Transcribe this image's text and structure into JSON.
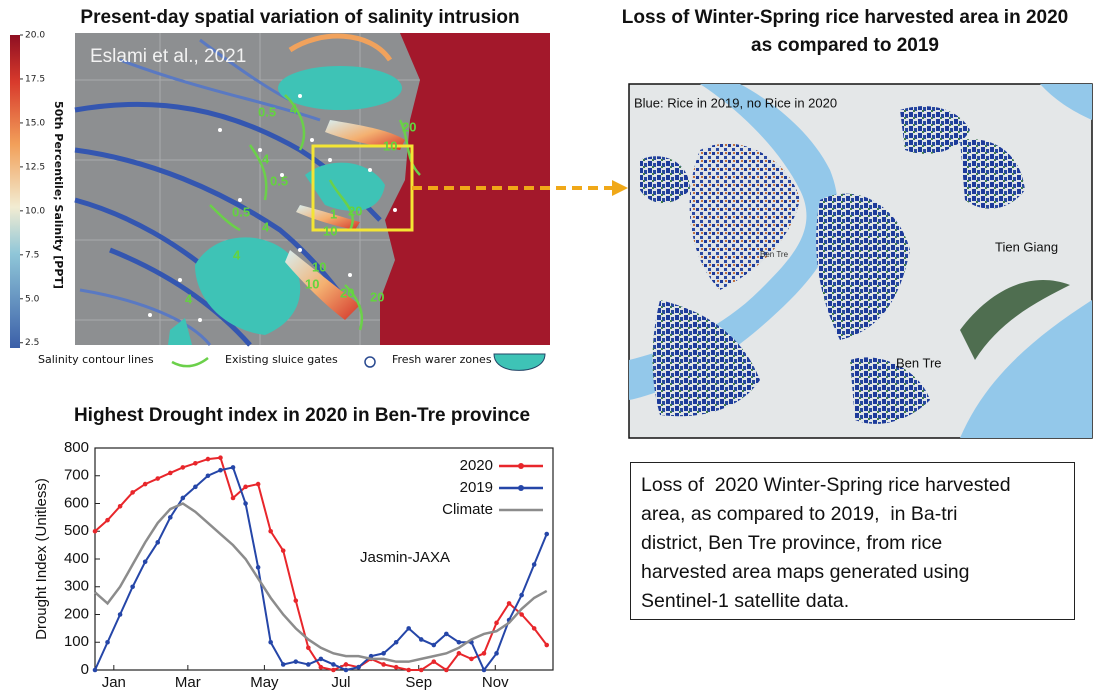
{
  "left_title": "Present-day spatial variation of salinity intrusion",
  "map_credit": "Eslami et al., 2021",
  "colorbar": {
    "label": "50th Percentile; Salinity [PPT]",
    "lim": [
      2.2,
      20
    ],
    "ticks": [
      {
        "value": 20,
        "label": "20.0"
      },
      17.5,
      {
        "value": 15,
        "label": "15.0"
      },
      12.5,
      {
        "value": 10,
        "label": "10.0"
      },
      7.5,
      {
        "value": 5,
        "label": "5.0"
      },
      2.5
    ]
  },
  "contour_labels": [
    "0.5",
    "4",
    "10",
    "20",
    "0.5",
    "4",
    "1",
    "20",
    "10",
    "4",
    "10",
    "20",
    "0.5",
    "4",
    "10",
    "4",
    "20"
  ],
  "map_legend": [
    "Salinity contour lines",
    "Existing sluice gates",
    "Fresh warer zones"
  ],
  "right_title": [
    "Loss of Winter-Spring rice harvested area in 2020",
    "as compared to 2019"
  ],
  "right_map": {
    "note": "Blue: Rice in 2019, no Rice in 2020",
    "labels": [
      "Tien Giang",
      "Ben Tre",
      "Ben Tre"
    ]
  },
  "description": [
    "Loss of  2020 Winter-Spring rice harvested",
    "area, as compared to 2019,  in Ba-tri",
    "district, Ben Tre province, from rice",
    "harvested area maps generated using",
    "Sentinel-1 satellite data."
  ],
  "chart_data": {
    "type": "line",
    "title": "Highest Drought index in 2020 in Ben-Tre province",
    "y_label": "Drought Index (Unitless)",
    "annotation": "Jasmin-JAXA",
    "x": [
      0,
      10,
      20,
      30,
      40,
      50,
      60,
      70,
      80,
      90,
      100,
      110,
      120,
      130,
      140,
      150,
      160,
      170,
      180,
      190,
      200,
      210,
      220,
      230,
      240,
      250,
      260,
      270,
      280,
      290,
      300,
      310,
      320,
      330,
      340,
      350,
      360
    ],
    "xlim": [
      0,
      365
    ],
    "xticks": [
      {
        "value": 15,
        "label": "Jan"
      },
      {
        "value": 74,
        "label": "Mar"
      },
      {
        "value": 135,
        "label": "May"
      },
      {
        "value": 196,
        "label": "Jul"
      },
      {
        "value": 258,
        "label": "Sep"
      },
      {
        "value": 319,
        "label": "Nov"
      }
    ],
    "ylim": [
      0,
      800
    ],
    "yticks": [
      0,
      100,
      200,
      300,
      400,
      500,
      600,
      700,
      800
    ],
    "legend": "upper right",
    "series": [
      {
        "name": "2020",
        "color": "#e8262b",
        "markers": true,
        "values": [
          500,
          540,
          590,
          640,
          670,
          690,
          710,
          730,
          745,
          760,
          765,
          620,
          660,
          670,
          500,
          430,
          250,
          80,
          10,
          0,
          20,
          10,
          40,
          20,
          10,
          0,
          0,
          30,
          0,
          60,
          40,
          60,
          170,
          240,
          200,
          150,
          90
        ]
      },
      {
        "name": "2019",
        "color": "#2546a8",
        "markers": true,
        "values": [
          0,
          100,
          200,
          300,
          390,
          460,
          550,
          620,
          660,
          700,
          720,
          730,
          600,
          370,
          100,
          20,
          30,
          20,
          40,
          20,
          0,
          10,
          50,
          60,
          100,
          150,
          110,
          90,
          130,
          100,
          100,
          0,
          60,
          180,
          270,
          380,
          490
        ]
      },
      {
        "name": "Climate",
        "color": "#8c8c8c",
        "markers": false,
        "values": [
          280,
          240,
          300,
          380,
          460,
          530,
          580,
          600,
          570,
          530,
          490,
          450,
          400,
          330,
          260,
          200,
          150,
          110,
          80,
          60,
          50,
          50,
          40,
          40,
          30,
          30,
          40,
          50,
          60,
          80,
          110,
          130,
          140,
          170,
          220,
          260,
          285
        ]
      }
    ]
  }
}
